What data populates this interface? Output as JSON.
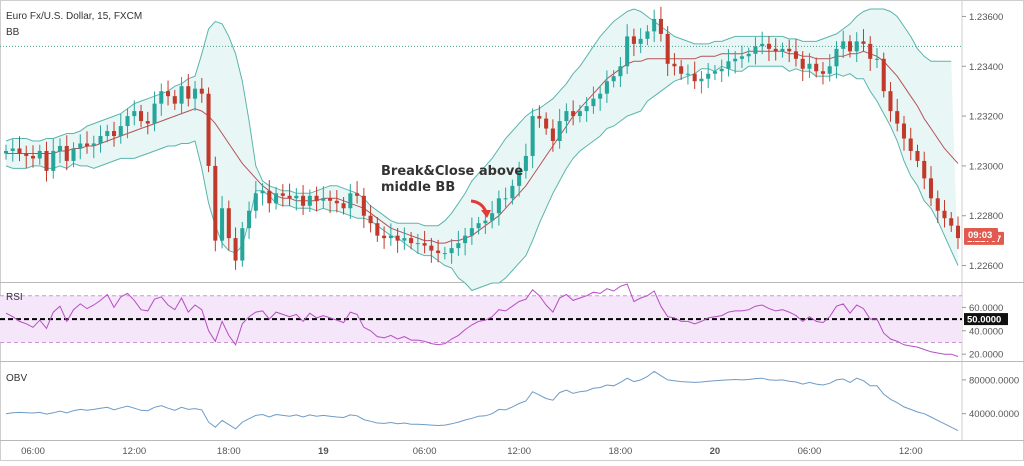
{
  "header": {
    "symbol_title": "Euro Fx/U.S. Dollar, 15, FXCM",
    "indicator_label": "BB"
  },
  "annotation": {
    "line1": "Break&Close above",
    "line2": "middle BB"
  },
  "price_badges": {
    "last_price": "1.22707",
    "countdown": "09:03"
  },
  "rsi_panel": {
    "label": "RSI",
    "mid_badge": "50.0000"
  },
  "obv_panel": {
    "label": "OBV"
  },
  "colors": {
    "bull": "#26a69a",
    "bear": "#c0392b",
    "bb_band": "#5ab5ad",
    "bb_fill": "#e8f6f5",
    "bb_basis": "#b5535a",
    "rsi_line": "#b74ec4",
    "rsi_fill": "#f5e6fa",
    "obv_line": "#6d9bc7",
    "price_badge": "#e05a4f"
  },
  "chart_data": [
    {
      "type": "candlestick",
      "title": "Euro Fx/U.S. Dollar, 15, FXCM",
      "x_tick_labels": [
        "06:00",
        "12:00",
        "18:00",
        "19",
        "06:00",
        "12:00",
        "18:00",
        "20",
        "06:00",
        "12:00"
      ],
      "y_tick_labels": [
        "1.23600",
        "1.23400",
        "1.23200",
        "1.23000",
        "1.22800",
        "1.22600"
      ],
      "ylim": [
        1.2255,
        1.2365
      ],
      "last_price": 1.22707,
      "dotted_level": 1.2348,
      "close": [
        1.2306,
        1.2307,
        1.2305,
        1.2304,
        1.2303,
        1.2306,
        1.2298,
        1.2306,
        1.2308,
        1.2302,
        1.2307,
        1.2309,
        1.2308,
        1.2309,
        1.2312,
        1.2314,
        1.2312,
        1.2316,
        1.232,
        1.2322,
        1.2318,
        1.2317,
        1.2325,
        1.233,
        1.2328,
        1.2325,
        1.2332,
        1.2327,
        1.2331,
        1.2329,
        1.23,
        1.227,
        1.2283,
        1.2271,
        1.2262,
        1.2275,
        1.2282,
        1.2289,
        1.229,
        1.2285,
        1.2289,
        1.2288,
        1.2287,
        1.2288,
        1.2284,
        1.2288,
        1.2286,
        1.2287,
        1.2286,
        1.2285,
        1.2283,
        1.2289,
        1.2288,
        1.228,
        1.2277,
        1.2272,
        1.2271,
        1.2272,
        1.227,
        1.2271,
        1.2269,
        1.2269,
        1.2268,
        1.2266,
        1.2265,
        1.2265,
        1.2267,
        1.2269,
        1.2272,
        1.2275,
        1.2277,
        1.2278,
        1.2281,
        1.2287,
        1.2287,
        1.2292,
        1.2298,
        1.2304,
        1.232,
        1.2319,
        1.2315,
        1.231,
        1.2318,
        1.2322,
        1.232,
        1.2322,
        1.2324,
        1.2327,
        1.2329,
        1.2334,
        1.2336,
        1.234,
        1.2352,
        1.2349,
        1.2351,
        1.2354,
        1.2359,
        1.2353,
        1.2341,
        1.234,
        1.2337,
        1.2337,
        1.2334,
        1.2335,
        1.2337,
        1.2338,
        1.2339,
        1.2342,
        1.2343,
        1.2344,
        1.2345,
        1.2348,
        1.2349,
        1.2347,
        1.2346,
        1.2347,
        1.2346,
        1.2343,
        1.2339,
        1.2341,
        1.2338,
        1.2337,
        1.234,
        1.2347,
        1.235,
        1.2346,
        1.235,
        1.2349,
        1.2343,
        1.2343,
        1.233,
        1.2322,
        1.2317,
        1.2311,
        1.2306,
        1.2302,
        1.2295,
        1.2287,
        1.2282,
        1.2279,
        1.2276,
        1.2271
      ],
      "bb_upper": [
        1.231,
        1.2311,
        1.2311,
        1.2311,
        1.231,
        1.231,
        1.2311,
        1.2311,
        1.2312,
        1.2313,
        1.2313,
        1.2314,
        1.2316,
        1.2317,
        1.2318,
        1.2319,
        1.232,
        1.2321,
        1.2323,
        1.2325,
        1.2326,
        1.2327,
        1.2328,
        1.2329,
        1.233,
        1.2332,
        1.2333,
        1.2335,
        1.2336,
        1.2345,
        1.2355,
        1.2358,
        1.2357,
        1.2352,
        1.2345,
        1.2334,
        1.2318,
        1.23,
        1.2294,
        1.2292,
        1.2291,
        1.229,
        1.229,
        1.2289,
        1.2289,
        1.2289,
        1.229,
        1.2291,
        1.2292,
        1.2292,
        1.2291,
        1.229,
        1.2289,
        1.2287,
        1.2284,
        1.2282,
        1.228,
        1.2278,
        1.2277,
        1.2277,
        1.2277,
        1.2277,
        1.2276,
        1.2276,
        1.2276,
        1.2278,
        1.2281,
        1.2285,
        1.2289,
        1.2294,
        1.2297,
        1.23,
        1.2303,
        1.2307,
        1.2311,
        1.2314,
        1.2317,
        1.232,
        1.2322,
        1.2323,
        1.2325,
        1.2327,
        1.233,
        1.2333,
        1.2337,
        1.234,
        1.2344,
        1.2348,
        1.2352,
        1.2355,
        1.2358,
        1.236,
        1.2362,
        1.2363,
        1.2362,
        1.236,
        1.2358,
        1.2356,
        1.2354,
        1.2352,
        1.2351,
        1.235,
        1.2349,
        1.2349,
        1.2349,
        1.235,
        1.235,
        1.2351,
        1.2352,
        1.2352,
        1.2352,
        1.2352,
        1.2352,
        1.2352,
        1.2352,
        1.2352,
        1.2351,
        1.2351,
        1.235,
        1.235,
        1.235,
        1.2351,
        1.2352,
        1.2353,
        1.2355,
        1.2357,
        1.236,
        1.2362,
        1.2363,
        1.2363,
        1.2363,
        1.2362,
        1.236,
        1.2356,
        1.2352,
        1.2347,
        1.2344,
        1.2342,
        1.2342,
        1.2342,
        1.2342
      ],
      "bb_basis": [
        1.2305,
        1.2305,
        1.2305,
        1.2305,
        1.2305,
        1.2305,
        1.2305,
        1.2305,
        1.2306,
        1.2306,
        1.2307,
        1.2307,
        1.2308,
        1.2308,
        1.2309,
        1.231,
        1.2311,
        1.2312,
        1.2313,
        1.2314,
        1.2315,
        1.2316,
        1.2317,
        1.2318,
        1.2319,
        1.232,
        1.2321,
        1.2322,
        1.2323,
        1.2322,
        1.232,
        1.2317,
        1.2313,
        1.2309,
        1.2305,
        1.2301,
        1.2298,
        1.2295,
        1.2292,
        1.229,
        1.2288,
        1.2287,
        1.2287,
        1.2286,
        1.2286,
        1.2286,
        1.2286,
        1.2287,
        1.2287,
        1.2287,
        1.2286,
        1.2285,
        1.2284,
        1.2283,
        1.2281,
        1.2279,
        1.2277,
        1.2275,
        1.2274,
        1.2273,
        1.2272,
        1.2271,
        1.227,
        1.227,
        1.2269,
        1.2269,
        1.227,
        1.227,
        1.2271,
        1.2272,
        1.2274,
        1.2276,
        1.2278,
        1.228,
        1.2283,
        1.2286,
        1.2289,
        1.2292,
        1.2296,
        1.23,
        1.2304,
        1.2308,
        1.2312,
        1.2316,
        1.232,
        1.2323,
        1.2326,
        1.2329,
        1.2332,
        1.2335,
        1.2337,
        1.2339,
        1.2341,
        1.2342,
        1.2342,
        1.2343,
        1.2343,
        1.2343,
        1.2343,
        1.2343,
        1.2343,
        1.2343,
        1.2343,
        1.2344,
        1.2344,
        1.2344,
        1.2345,
        1.2345,
        1.2345,
        1.2345,
        1.2346,
        1.2346,
        1.2346,
        1.2346,
        1.2346,
        1.2346,
        1.2345,
        1.2345,
        1.2344,
        1.2344,
        1.2343,
        1.2343,
        1.2343,
        1.2344,
        1.2344,
        1.2345,
        1.2345,
        1.2346,
        1.2345,
        1.2344,
        1.2342,
        1.2339,
        1.2336,
        1.2332,
        1.2328,
        1.2324,
        1.2319,
        1.2315,
        1.2311,
        1.2307,
        1.2304,
        1.2301
      ],
      "bb_lower": [
        1.23,
        1.2299,
        1.2299,
        1.2299,
        1.23,
        1.23,
        1.2299,
        1.2299,
        1.23,
        1.2299,
        1.2301,
        1.23,
        1.23,
        1.2299,
        1.23,
        1.2301,
        1.2302,
        1.2303,
        1.2303,
        1.2303,
        1.2304,
        1.2305,
        1.2306,
        1.2307,
        1.2308,
        1.2308,
        1.2309,
        1.2309,
        1.231,
        1.2299,
        1.2285,
        1.2276,
        1.2269,
        1.2266,
        1.2265,
        1.2268,
        1.2278,
        1.229,
        1.229,
        1.2288,
        1.2285,
        1.2284,
        1.2284,
        1.2283,
        1.2283,
        1.2283,
        1.2282,
        1.2283,
        1.2282,
        1.2282,
        1.2281,
        1.228,
        1.2279,
        1.2279,
        1.2278,
        1.2276,
        1.2274,
        1.2272,
        1.2271,
        1.2269,
        1.2267,
        1.2265,
        1.2264,
        1.2264,
        1.2262,
        1.226,
        1.2259,
        1.2255,
        1.2253,
        1.225,
        1.2251,
        1.2252,
        1.2253,
        1.2253,
        1.2255,
        1.2258,
        1.2261,
        1.2264,
        1.227,
        1.2277,
        1.2283,
        1.2289,
        1.2294,
        1.2299,
        1.2303,
        1.2306,
        1.2308,
        1.231,
        1.2312,
        1.2315,
        1.2316,
        1.2318,
        1.232,
        1.2321,
        1.2322,
        1.2326,
        1.2328,
        1.233,
        1.2332,
        1.2334,
        1.2335,
        1.2336,
        1.2337,
        1.2339,
        1.2339,
        1.2338,
        1.234,
        1.2339,
        1.2338,
        1.2338,
        1.234,
        1.234,
        1.234,
        1.234,
        1.234,
        1.234,
        1.2338,
        1.2339,
        1.2338,
        1.2338,
        1.2336,
        1.2336,
        1.2336,
        1.2337,
        1.2336,
        1.2337,
        1.2335,
        1.2335,
        1.233,
        1.2326,
        1.2321,
        1.2316,
        1.231,
        1.2302,
        1.2296,
        1.2292,
        1.2286,
        1.2283,
        1.2278,
        1.2272,
        1.2266,
        1.226
      ]
    },
    {
      "type": "line",
      "name": "RSI",
      "y_tick_labels": [
        "60.0000",
        "40.0000",
        "20.0000"
      ],
      "ylim": [
        15,
        80
      ],
      "upper_band": 70,
      "lower_band": 30,
      "mid_line": 50,
      "values": [
        55,
        52,
        48,
        46,
        43,
        49,
        42,
        56,
        61,
        48,
        58,
        63,
        59,
        62,
        66,
        71,
        60,
        69,
        72,
        66,
        58,
        57,
        67,
        69,
        62,
        58,
        68,
        56,
        62,
        58,
        40,
        31,
        48,
        36,
        28,
        46,
        52,
        56,
        57,
        50,
        56,
        54,
        52,
        54,
        48,
        55,
        51,
        53,
        51,
        49,
        47,
        56,
        54,
        43,
        40,
        35,
        34,
        36,
        33,
        35,
        32,
        32,
        31,
        29,
        28,
        29,
        33,
        36,
        41,
        45,
        48,
        49,
        52,
        58,
        57,
        61,
        65,
        67,
        75,
        70,
        62,
        56,
        68,
        71,
        66,
        68,
        70,
        73,
        72,
        76,
        74,
        78,
        80,
        65,
        68,
        70,
        74,
        61,
        52,
        51,
        48,
        48,
        46,
        48,
        51,
        52,
        53,
        56,
        57,
        57,
        58,
        61,
        62,
        59,
        57,
        58,
        56,
        53,
        48,
        52,
        48,
        47,
        52,
        61,
        63,
        55,
        62,
        59,
        50,
        50,
        38,
        33,
        31,
        28,
        27,
        26,
        24,
        22,
        21,
        20,
        20,
        18
      ],
      "marker": 50.0
    },
    {
      "type": "line",
      "name": "OBV",
      "y_tick_labels": [
        "80000.0000",
        "40000.0000"
      ],
      "ylim": [
        10000,
        100000
      ],
      "values": [
        40000,
        41000,
        41500,
        41200,
        40800,
        41500,
        39500,
        41000,
        43000,
        41000,
        43500,
        45000,
        44000,
        45000,
        46500,
        47500,
        44500,
        47000,
        49000,
        46500,
        44000,
        43500,
        47500,
        49500,
        46500,
        44000,
        47500,
        45000,
        46000,
        44500,
        30000,
        24000,
        32000,
        27000,
        22000,
        30000,
        34000,
        38000,
        39000,
        36000,
        39000,
        38000,
        37000,
        38500,
        36000,
        38500,
        37000,
        38000,
        37000,
        36000,
        35500,
        38500,
        37500,
        33000,
        31000,
        29000,
        28500,
        29500,
        28000,
        29000,
        27500,
        27500,
        27000,
        26500,
        26000,
        26500,
        28000,
        30000,
        32500,
        34500,
        37000,
        37500,
        40000,
        45000,
        44500,
        48000,
        52000,
        55000,
        66000,
        62000,
        58000,
        56000,
        65000,
        68000,
        64000,
        66000,
        67000,
        70000,
        71000,
        74000,
        73000,
        77000,
        82000,
        78000,
        80000,
        84000,
        90000,
        85000,
        80000,
        79000,
        78000,
        77500,
        77000,
        77500,
        78500,
        79000,
        79500,
        80000,
        80500,
        80000,
        80500,
        81500,
        82000,
        80000,
        79500,
        80000,
        78500,
        77500,
        75000,
        77000,
        75000,
        74000,
        76000,
        80000,
        81000,
        77000,
        82000,
        79000,
        73000,
        73000,
        63000,
        57000,
        53000,
        48000,
        45000,
        42000,
        40000,
        36000,
        32000,
        28000,
        24000,
        20000
      ]
    }
  ]
}
